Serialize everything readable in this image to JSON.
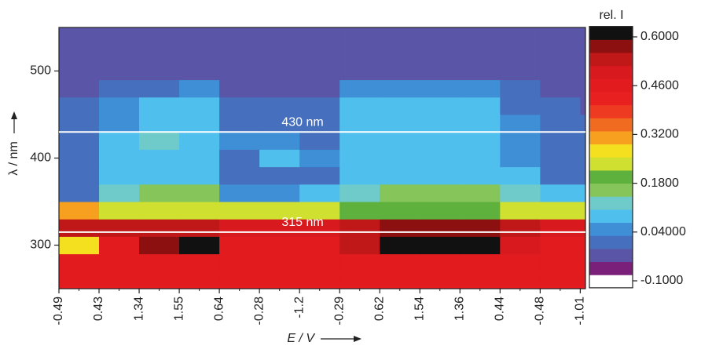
{
  "chart_data": {
    "type": "heatmap",
    "xlabel": "E / V",
    "ylabel": "λ / nm",
    "colorbar_title": "rel. I",
    "categories": [
      "-0.49",
      "0.43",
      "1.34",
      "1.55",
      "0.64",
      "-0.28",
      "-1.2",
      "-0.29",
      "0.62",
      "1.54",
      "1.36",
      "0.44",
      "-0.48",
      "-1.01"
    ],
    "y": [
      260,
      280,
      300,
      320,
      340,
      360,
      380,
      400,
      420,
      440,
      460,
      480,
      500,
      520,
      540
    ],
    "z": [
      [
        0.45,
        0.45,
        0.45,
        0.45,
        0.45,
        0.45,
        0.46,
        0.47,
        0.47,
        0.45,
        0.45,
        0.45,
        0.45,
        0.45
      ],
      [
        0.45,
        0.45,
        0.47,
        0.47,
        0.45,
        0.45,
        0.47,
        0.48,
        0.48,
        0.46,
        0.45,
        0.45,
        0.45,
        0.45
      ],
      [
        0.28,
        0.48,
        0.58,
        0.6,
        0.45,
        0.45,
        0.45,
        0.55,
        0.6,
        0.6,
        0.6,
        0.5,
        0.45,
        0.45
      ],
      [
        0.52,
        0.55,
        0.55,
        0.55,
        0.5,
        0.5,
        0.5,
        0.55,
        0.56,
        0.56,
        0.56,
        0.52,
        0.5,
        0.5
      ],
      [
        0.3,
        0.22,
        0.22,
        0.22,
        0.25,
        0.25,
        0.25,
        0.2,
        0.2,
        0.2,
        0.2,
        0.22,
        0.25,
        0.25
      ],
      [
        0.03,
        0.14,
        0.15,
        0.15,
        0.06,
        0.05,
        0.07,
        0.14,
        0.16,
        0.16,
        0.16,
        0.14,
        0.1,
        0.1
      ],
      [
        0,
        0.08,
        0.09,
        0.09,
        0.03,
        0.03,
        0.03,
        0.1,
        0.1,
        0.1,
        0.1,
        0.08,
        0.03,
        0.03
      ],
      [
        0,
        0.08,
        0.1,
        0.1,
        0.02,
        0.08,
        0.05,
        0.09,
        0.1,
        0.1,
        0.1,
        0.06,
        0.03,
        0.02
      ],
      [
        0,
        0.08,
        0.11,
        0.1,
        0.04,
        0.06,
        0.02,
        0.1,
        0.1,
        0.1,
        0.1,
        0.05,
        0.02,
        0.02
      ],
      [
        0,
        0.06,
        0.1,
        0.1,
        0.03,
        0.02,
        0.01,
        0.1,
        0.1,
        0.1,
        0.1,
        0.04,
        0.01,
        0.01
      ],
      [
        0,
        0.04,
        0.08,
        0.08,
        0,
        0,
        0,
        0.08,
        0.1,
        0.1,
        0.1,
        0.02,
        0,
        -0.01
      ],
      [
        -0.02,
        0,
        0.03,
        0.04,
        -0.02,
        -0.02,
        -0.02,
        0.04,
        0.05,
        0.05,
        0.05,
        0,
        -0.02,
        -0.02
      ],
      [
        -0.02,
        -0.02,
        -0.02,
        -0.02,
        -0.02,
        -0.02,
        -0.02,
        -0.02,
        -0.02,
        -0.02,
        -0.02,
        -0.02,
        -0.02,
        -0.02
      ],
      [
        -0.02,
        -0.02,
        -0.02,
        -0.02,
        -0.02,
        -0.02,
        -0.02,
        -0.02,
        -0.02,
        -0.02,
        -0.02,
        -0.02,
        -0.02,
        -0.02
      ],
      [
        -0.02,
        -0.02,
        -0.02,
        -0.02,
        -0.02,
        -0.02,
        -0.02,
        -0.02,
        -0.02,
        -0.02,
        -0.02,
        -0.02,
        -0.02,
        -0.02
      ]
    ],
    "ylim": [
      250,
      550
    ],
    "yticks": [
      300,
      400,
      500
    ],
    "zlim": [
      -0.12,
      0.63
    ],
    "colors": [
      "#ffffff",
      "#7a1f7a",
      "#5b55a8",
      "#4670bd",
      "#3f8fd6",
      "#4fc0ee",
      "#6fcaca",
      "#86c55a",
      "#5fb13e",
      "#cfe030",
      "#f5e020",
      "#f7a020",
      "#f06a20",
      "#ee3a20",
      "#e82020",
      "#e21b1f",
      "#d81a1e",
      "#c01818",
      "#8c1010",
      "#111111"
    ],
    "zticks": [
      {
        "value": -0.1,
        "label": "-0.1000"
      },
      {
        "value": 0.04,
        "label": "0.04000"
      },
      {
        "value": 0.18,
        "label": "0.1800"
      },
      {
        "value": 0.32,
        "label": "0.3200"
      },
      {
        "value": 0.46,
        "label": "0.4600"
      },
      {
        "value": 0.6,
        "label": "0.6000"
      }
    ],
    "annotations": [
      {
        "text": "430 nm",
        "value": 430
      },
      {
        "text": "315 nm",
        "value": 315
      }
    ]
  }
}
